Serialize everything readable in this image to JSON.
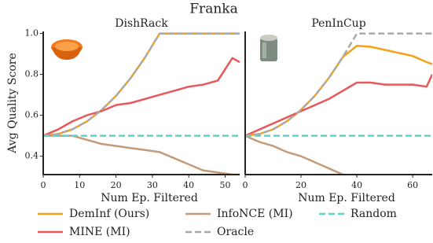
{
  "title": "Franka",
  "chart_data": [
    {
      "type": "line",
      "title": "DishRack",
      "xlabel": "Num Ep. Filtered",
      "ylabel": "Avg Quality Score",
      "x": [
        0,
        4,
        8,
        12,
        16,
        20,
        24,
        28,
        32,
        36,
        40,
        44,
        48,
        52,
        54
      ],
      "xlim": [
        0,
        54
      ],
      "ylim": [
        0.31,
        1.01
      ],
      "xticks": [
        0,
        10,
        20,
        30,
        40,
        50
      ],
      "yticks": [
        0.4,
        0.6,
        0.8,
        {
          "value": 1,
          "label": "1.0"
        }
      ],
      "series": [
        {
          "name": "DemInf (Ours)",
          "color": "#f5a11a",
          "dash": false,
          "values": [
            0.5,
            0.508,
            0.531,
            0.57,
            0.625,
            0.695,
            0.781,
            0.883,
            1,
            1,
            1,
            1,
            1,
            1,
            1
          ]
        },
        {
          "name": "MINE (MI)",
          "color": "#e8575a",
          "dash": false,
          "values": [
            0.5,
            0.53,
            0.57,
            0.6,
            0.62,
            0.65,
            0.66,
            0.68,
            0.7,
            0.72,
            0.74,
            0.75,
            0.77,
            0.88,
            0.86
          ]
        },
        {
          "name": "InfoNCE (MI)",
          "color": "#c49a78",
          "dash": false,
          "values": [
            0.5,
            0.5,
            0.5,
            0.48,
            0.46,
            0.45,
            0.44,
            0.43,
            0.42,
            0.39,
            0.36,
            0.33,
            0.32,
            0.31,
            0.31
          ]
        },
        {
          "name": "Oracle",
          "color": "#aaaaaa",
          "dash": true,
          "values": [
            0.5,
            0.508,
            0.531,
            0.57,
            0.625,
            0.695,
            0.781,
            0.883,
            1,
            1,
            1,
            1,
            1,
            1,
            1
          ]
        },
        {
          "name": "Random",
          "color": "#5fd3c8",
          "dash": true,
          "values": [
            0.5,
            0.5,
            0.5,
            0.5,
            0.5,
            0.5,
            0.5,
            0.5,
            0.5,
            0.5,
            0.5,
            0.5,
            0.5,
            0.5,
            0.5
          ]
        }
      ]
    },
    {
      "type": "line",
      "title": "PenInCup",
      "xlabel": "Num Ep. Filtered",
      "x": [
        0,
        5,
        10,
        15,
        20,
        25,
        30,
        35,
        40,
        45,
        50,
        55,
        60,
        65,
        67
      ],
      "xlim": [
        0,
        67
      ],
      "ylim": [
        0.31,
        1.01
      ],
      "xticks": [
        0,
        20,
        40,
        60
      ],
      "series": [
        {
          "name": "DemInf (Ours)",
          "color": "#f5a11a",
          "dash": false,
          "values": [
            0.5,
            0.508,
            0.531,
            0.571,
            0.626,
            0.696,
            0.783,
            0.885,
            0.94,
            0.935,
            0.92,
            0.905,
            0.89,
            0.86,
            0.85
          ]
        },
        {
          "name": "MINE (MI)",
          "color": "#e8575a",
          "dash": false,
          "values": [
            0.5,
            0.53,
            0.56,
            0.59,
            0.62,
            0.65,
            0.68,
            0.72,
            0.76,
            0.76,
            0.75,
            0.75,
            0.75,
            0.74,
            0.8
          ]
        },
        {
          "name": "InfoNCE (MI)",
          "color": "#c49a78",
          "dash": false,
          "values": [
            0.5,
            0.47,
            0.45,
            0.42,
            0.4,
            0.37,
            0.34,
            0.31,
            null,
            null,
            null,
            null,
            null,
            null,
            null
          ]
        },
        {
          "name": "Oracle",
          "color": "#aaaaaa",
          "dash": true,
          "values": [
            0.5,
            0.508,
            0.531,
            0.571,
            0.626,
            0.696,
            0.783,
            0.885,
            1,
            1,
            1,
            1,
            1,
            1,
            1
          ]
        },
        {
          "name": "Random",
          "color": "#5fd3c8",
          "dash": true,
          "values": [
            0.5,
            0.5,
            0.5,
            0.5,
            0.5,
            0.5,
            0.5,
            0.5,
            0.5,
            0.5,
            0.5,
            0.5,
            0.5,
            0.5,
            0.5
          ]
        }
      ]
    }
  ]
}
